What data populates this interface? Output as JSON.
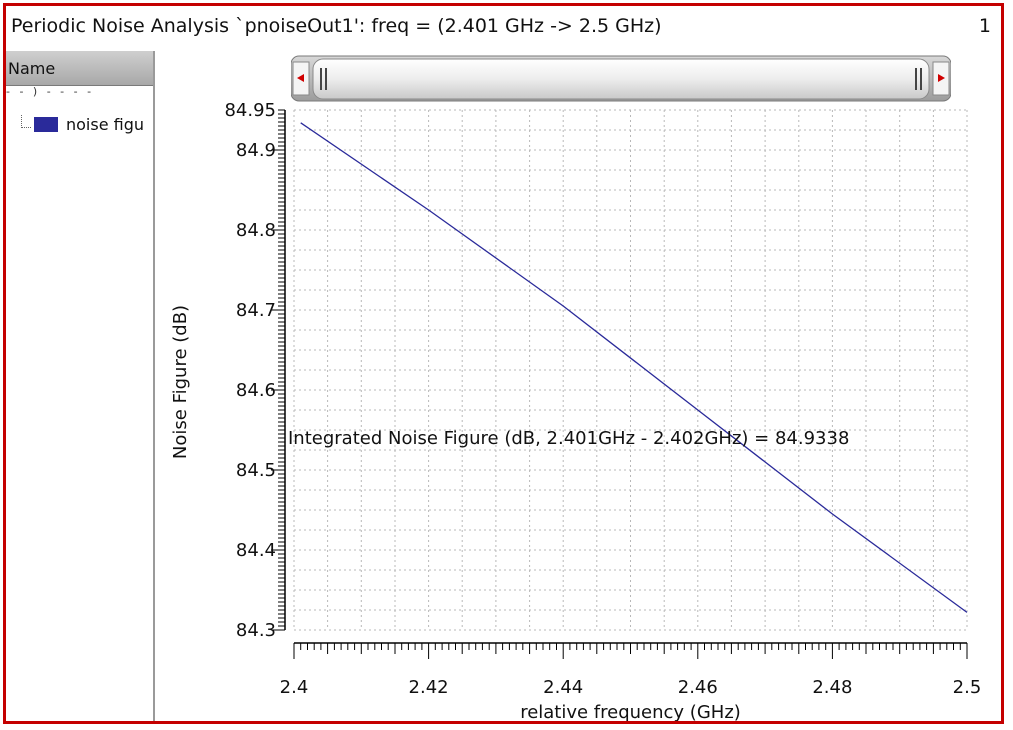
{
  "window": {
    "title": "Periodic Noise Analysis `pnoiseOut1': freq = (2.401 GHz -> 2.5 GHz)",
    "subwindow_number": "1"
  },
  "sidebar": {
    "header": "Name",
    "tree_stub": "- - ) - - - -",
    "legend_items": [
      {
        "label": "noise figu",
        "color": "#2a2a9a"
      }
    ]
  },
  "colors": {
    "frame": "#c40000",
    "trace": "#2a2a9a",
    "grid": "#b8b8b8"
  },
  "chart_data": {
    "type": "line",
    "title": "",
    "xlabel": "relative frequency (GHz)",
    "ylabel": "Noise Figure (dB)",
    "xlim": [
      2.4,
      2.5
    ],
    "ylim": [
      84.3,
      84.95
    ],
    "xticks": [
      "2.4",
      "2.42",
      "2.44",
      "2.46",
      "2.48",
      "2.5"
    ],
    "yticks": [
      "84.95",
      "84.9",
      "84.8",
      "84.7",
      "84.6",
      "84.5",
      "84.4",
      "84.3"
    ],
    "grid": true,
    "series": [
      {
        "name": "noise figu",
        "color": "#2a2a9a",
        "x": [
          2.401,
          2.42,
          2.44,
          2.46,
          2.48,
          2.5
        ],
        "y": [
          84.934,
          84.825,
          84.705,
          84.575,
          84.445,
          84.322
        ]
      }
    ],
    "annotation": "Integrated Noise Figure (dB, 2.401GHz - 2.402GHz) = 84.9338"
  }
}
